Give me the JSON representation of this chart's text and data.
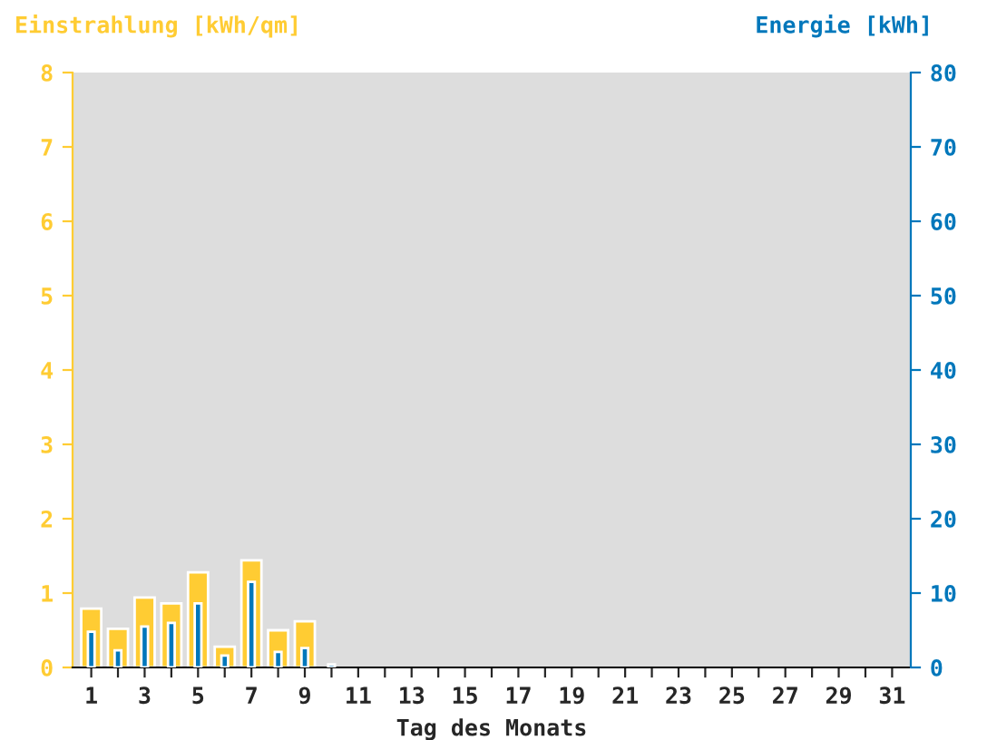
{
  "chart_data": {
    "type": "bar",
    "xlabel": "Tag des Monats",
    "ylabel": "Einstrahlung [kWh/qm]",
    "y2label": "Energie [kWh]",
    "categories": [
      "1",
      null,
      "3",
      null,
      "5",
      null,
      "7",
      null,
      "9",
      null,
      "11",
      null,
      "13",
      null,
      "15",
      null,
      "17",
      null,
      "19",
      null,
      "21",
      null,
      "23",
      null,
      "25",
      null,
      "27",
      null,
      "29",
      null,
      "31"
    ],
    "series": [
      {
        "color": "#ffcc33",
        "values": [
          0.79,
          0.52,
          0.94,
          0.86,
          1.28,
          0.28,
          1.44,
          0.5,
          0.62,
          null,
          null,
          null,
          null,
          null,
          null,
          null,
          null,
          null,
          null,
          null,
          null,
          null,
          null,
          null,
          null,
          null,
          null,
          null,
          null,
          null,
          null
        ]
      },
      {
        "color": "#0077bb",
        "axis": "y2",
        "values": [
          4.8,
          2.3,
          5.5,
          6.0,
          8.6,
          1.6,
          11.5,
          2.1,
          2.6,
          0.4,
          null,
          null,
          null,
          null,
          null,
          null,
          null,
          null,
          null,
          null,
          null,
          null,
          null,
          null,
          null,
          null,
          null,
          null,
          null,
          null,
          null
        ]
      }
    ],
    "ylim": [
      0,
      8
    ],
    "yticks": [
      0,
      1,
      2,
      3,
      4,
      5,
      6,
      7,
      8
    ],
    "y2lim": [
      0,
      80
    ],
    "y2ticks": [
      0,
      10,
      20,
      30,
      40,
      50,
      60,
      70,
      80
    ],
    "grid": false,
    "legend": false
  }
}
